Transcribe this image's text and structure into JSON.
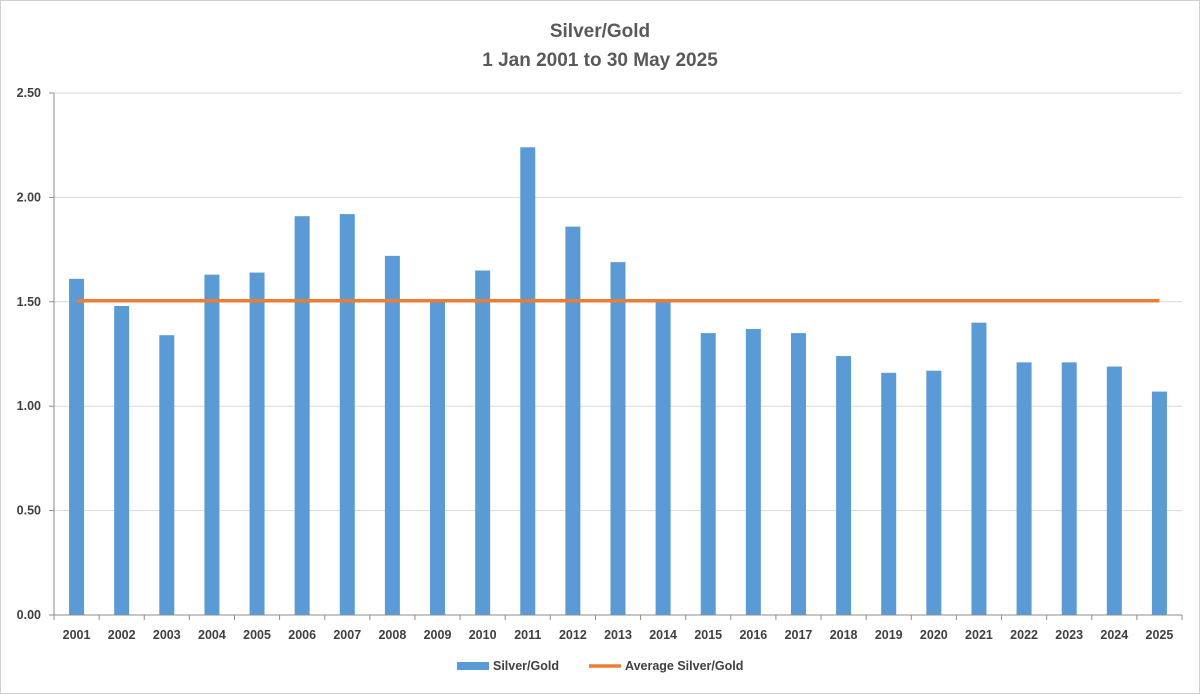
{
  "chart_data": {
    "type": "bar",
    "title": "Silver/Gold",
    "subtitle": "1 Jan 2001 to 30 May 2025",
    "categories": [
      "2001",
      "2002",
      "2003",
      "2004",
      "2005",
      "2006",
      "2007",
      "2008",
      "2009",
      "2010",
      "2011",
      "2012",
      "2013",
      "2014",
      "2015",
      "2016",
      "2017",
      "2018",
      "2019",
      "2020",
      "2021",
      "2022",
      "2023",
      "2024",
      "2025"
    ],
    "series": [
      {
        "name": "Silver/Gold",
        "kind": "bar",
        "color": "#5b9bd5",
        "values": [
          1.61,
          1.48,
          1.34,
          1.63,
          1.64,
          1.91,
          1.92,
          1.72,
          1.5,
          1.65,
          2.24,
          1.86,
          1.69,
          1.5,
          1.35,
          1.37,
          1.35,
          1.24,
          1.16,
          1.17,
          1.4,
          1.21,
          1.21,
          1.19,
          1.07
        ]
      },
      {
        "name": "Average Silver/Gold",
        "kind": "line",
        "color": "#ed7d31",
        "value": 1.505
      }
    ],
    "y_ticks": [
      "0.00",
      "0.50",
      "1.00",
      "1.50",
      "2.00",
      "2.50"
    ],
    "ylim": [
      0,
      2.5
    ],
    "xlabel": "",
    "ylabel": "",
    "grid": true,
    "legend_position": "bottom"
  }
}
